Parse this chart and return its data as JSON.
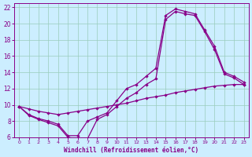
{
  "title": "",
  "xlabel": "Windchill (Refroidissement éolien,°C)",
  "bg_color": "#cceeff",
  "grid_color": "#99ccbb",
  "line_color": "#880088",
  "xlim": [
    -0.5,
    23.5
  ],
  "ylim": [
    6,
    22.5
  ],
  "xticks": [
    0,
    1,
    2,
    3,
    4,
    5,
    6,
    7,
    8,
    9,
    10,
    11,
    12,
    13,
    14,
    15,
    16,
    17,
    18,
    19,
    20,
    21,
    22,
    23
  ],
  "yticks": [
    6,
    8,
    10,
    12,
    14,
    16,
    18,
    20,
    22
  ],
  "curve1_x": [
    0,
    1,
    2,
    3,
    4,
    5,
    6,
    7,
    8,
    9,
    10,
    11,
    12,
    13,
    14,
    15,
    16,
    17,
    18,
    19,
    20,
    21,
    22,
    23
  ],
  "curve1_y": [
    9.8,
    8.8,
    8.3,
    8.0,
    7.6,
    6.2,
    6.2,
    8.0,
    8.5,
    9.0,
    10.5,
    12.0,
    12.5,
    13.5,
    14.5,
    21.0,
    21.8,
    21.5,
    21.2,
    19.2,
    17.2,
    14.0,
    13.5,
    12.8
  ],
  "curve2_x": [
    0,
    1,
    2,
    3,
    4,
    5,
    6,
    7,
    8,
    9,
    10,
    11,
    12,
    13,
    14,
    15,
    16,
    17,
    18,
    19,
    20,
    21,
    22,
    23
  ],
  "curve2_y": [
    9.8,
    8.7,
    8.2,
    7.8,
    7.4,
    6.0,
    5.8,
    5.8,
    8.2,
    8.8,
    9.8,
    10.8,
    11.5,
    12.5,
    13.2,
    20.5,
    21.5,
    21.2,
    21.0,
    19.0,
    16.8,
    13.8,
    13.3,
    12.5
  ],
  "curve3_x": [
    0,
    1,
    2,
    3,
    4,
    5,
    6,
    7,
    8,
    9,
    10,
    11,
    12,
    13,
    14,
    15,
    16,
    17,
    18,
    19,
    20,
    21,
    22,
    23
  ],
  "curve3_y": [
    9.8,
    9.5,
    9.2,
    9.0,
    8.8,
    9.0,
    9.2,
    9.4,
    9.6,
    9.8,
    10.0,
    10.2,
    10.5,
    10.8,
    11.0,
    11.2,
    11.5,
    11.7,
    11.9,
    12.1,
    12.3,
    12.4,
    12.5,
    12.5
  ],
  "marker": "D",
  "marker_size": 2.2,
  "linewidth": 0.9
}
